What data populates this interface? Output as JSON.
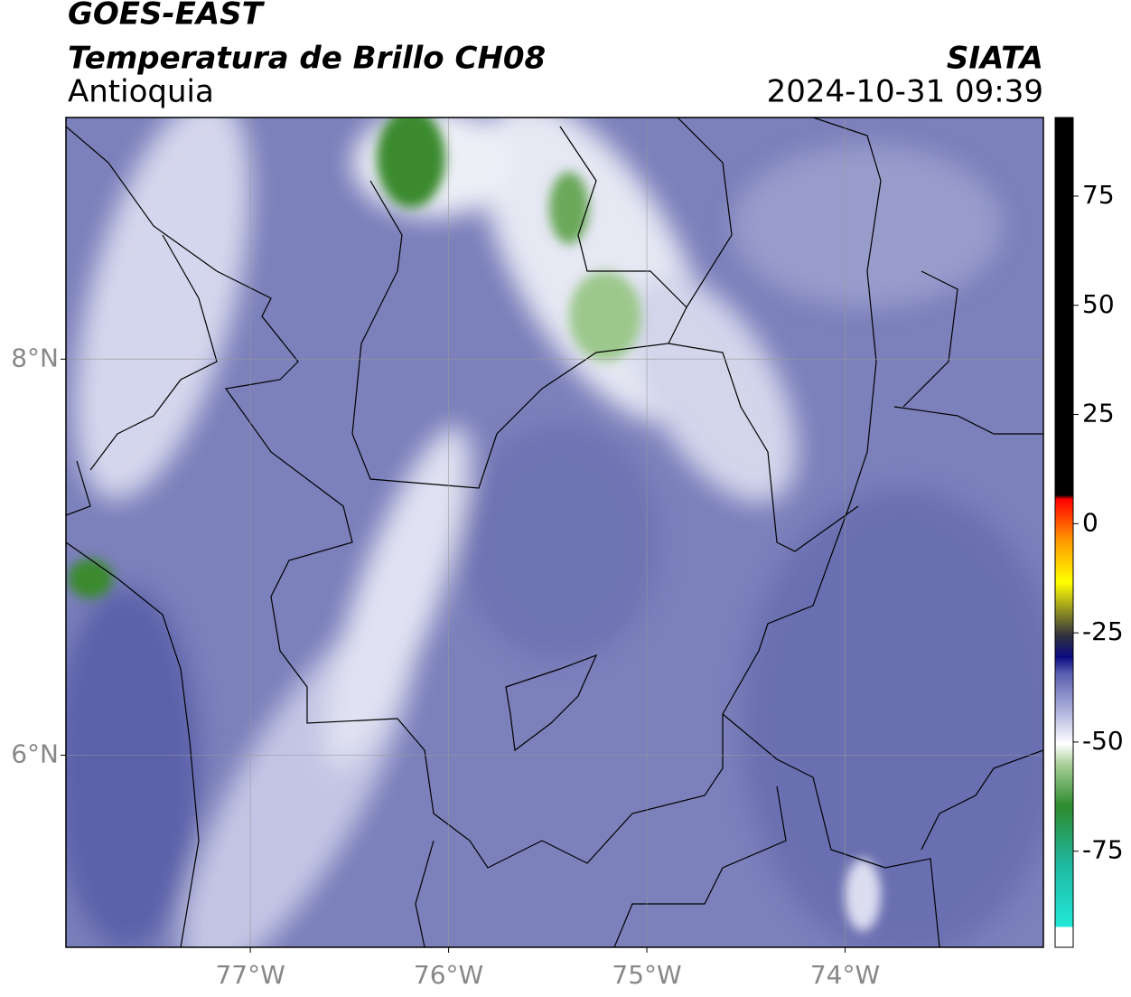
{
  "header": {
    "title": "GOES-EAST",
    "subtitle": "Temperatura de Brillo CH08",
    "region": "Antioquia",
    "source": "SIATA",
    "datetime": "2024-10-31 09:39"
  },
  "map": {
    "lon_range": [
      -77.93,
      -73.0
    ],
    "lat_range": [
      5.03,
      9.22
    ],
    "lat_ticks": [
      {
        "value": 8,
        "label": "8°N"
      },
      {
        "value": 6,
        "label": "6°N"
      }
    ],
    "lon_ticks": [
      {
        "value": -77,
        "label": "77°W"
      },
      {
        "value": -76,
        "label": "76°W"
      },
      {
        "value": -75,
        "label": "75°W"
      },
      {
        "value": -74,
        "label": "74°W"
      }
    ],
    "grid": true
  },
  "colorbar": {
    "range": [
      -97,
      93
    ],
    "ticks": [
      75,
      50,
      25,
      0,
      -25,
      -50,
      -75
    ]
  }
}
